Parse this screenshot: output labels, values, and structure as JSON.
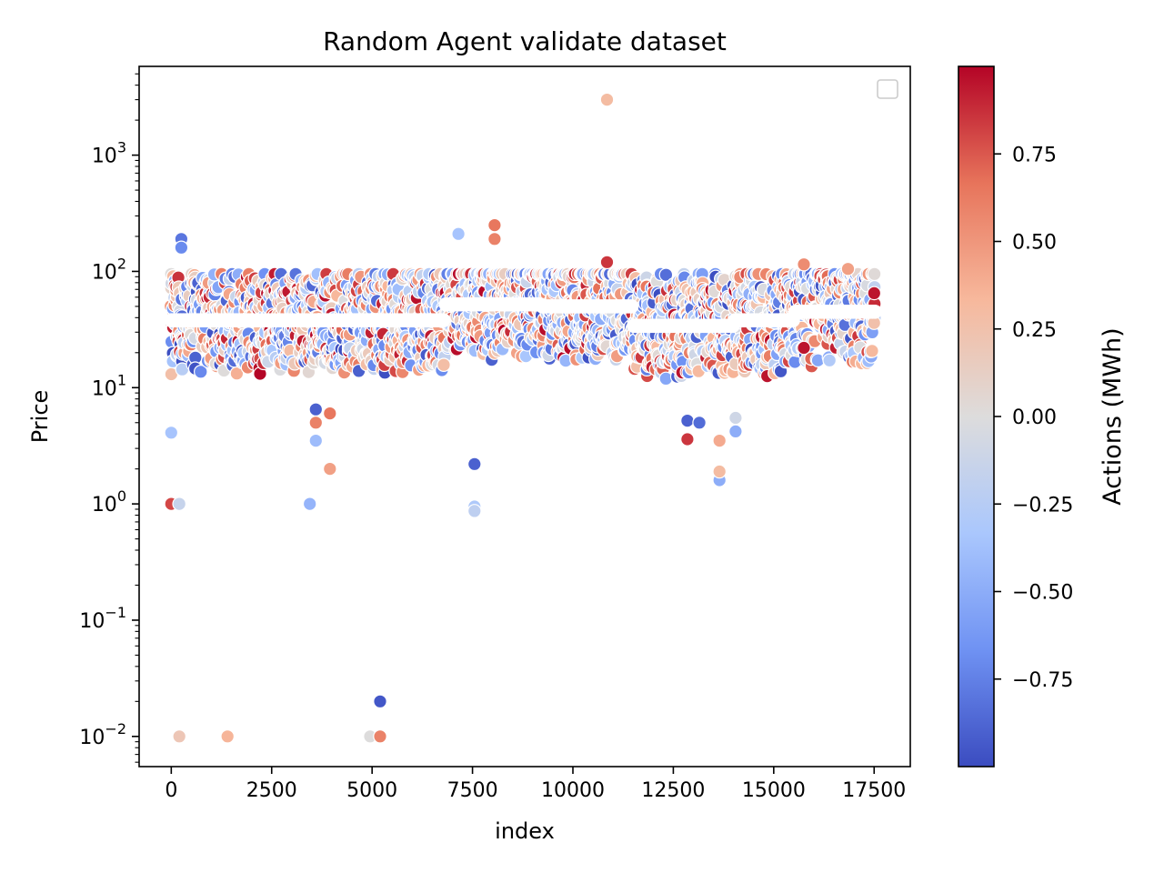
{
  "chart_data": {
    "type": "scatter",
    "title": "Random Agent validate dataset",
    "xlabel": "index",
    "ylabel": "Price",
    "yscale": "log",
    "xlim": [
      -800,
      18400
    ],
    "ylim": [
      0.0055,
      5800
    ],
    "x_ticks": [
      0,
      2500,
      5000,
      7500,
      10000,
      12500,
      15000,
      17500
    ],
    "x_tick_labels": [
      "0",
      "2500",
      "5000",
      "7500",
      "10000",
      "12500",
      "15000",
      "17500"
    ],
    "y_ticks": [
      0.01,
      0.1,
      1,
      10,
      100,
      1000
    ],
    "y_tick_labels": [
      {
        "base": "10",
        "exp": "−2"
      },
      {
        "base": "10",
        "exp": "−1"
      },
      {
        "base": "10",
        "exp": "0"
      },
      {
        "base": "10",
        "exp": "1"
      },
      {
        "base": "10",
        "exp": "2"
      },
      {
        "base": "10",
        "exp": "3"
      }
    ],
    "grid": false,
    "legend": {
      "placement": "upper right",
      "entries": []
    },
    "colorbar": {
      "label": "Actions (MWh)",
      "colormap": "coolwarm",
      "range": [
        -1,
        1
      ],
      "ticks": [
        -0.75,
        -0.5,
        -0.25,
        0,
        0.25,
        0.5,
        0.75
      ],
      "tick_labels": [
        "−0.75",
        "−0.50",
        "−0.25",
        "0.00",
        "0.25",
        "0.50",
        "0.75"
      ]
    },
    "colormap_colors": [
      "#3b4cc0",
      "#6f92f3",
      "#aac7fd",
      "#dddcdc",
      "#f7b89c",
      "#e7745b",
      "#b40426"
    ],
    "notable_points": [
      {
        "x": 0,
        "y": 1.0,
        "action": 0.8
      },
      {
        "x": 0,
        "y": 4.1,
        "action": -0.35
      },
      {
        "x": 200,
        "y": 1.0,
        "action": -0.15
      },
      {
        "x": 200,
        "y": 0.01,
        "action": 0.2
      },
      {
        "x": 1400,
        "y": 0.01,
        "action": 0.35
      },
      {
        "x": 3450,
        "y": 1.0,
        "action": -0.45
      },
      {
        "x": 3600,
        "y": 3.5,
        "action": -0.4
      },
      {
        "x": 3600,
        "y": 5.0,
        "action": 0.6
      },
      {
        "x": 3600,
        "y": 6.5,
        "action": -0.9
      },
      {
        "x": 3950,
        "y": 2.0,
        "action": 0.45
      },
      {
        "x": 3950,
        "y": 6.0,
        "action": 0.65
      },
      {
        "x": 4950,
        "y": 0.01,
        "action": 0.0
      },
      {
        "x": 5200,
        "y": 0.02,
        "action": -0.95
      },
      {
        "x": 5200,
        "y": 0.01,
        "action": 0.6
      },
      {
        "x": 7550,
        "y": 2.2,
        "action": -0.9
      },
      {
        "x": 7550,
        "y": 0.95,
        "action": -0.3
      },
      {
        "x": 7550,
        "y": 0.87,
        "action": -0.2
      },
      {
        "x": 8050,
        "y": 250,
        "action": 0.65
      },
      {
        "x": 8050,
        "y": 190,
        "action": 0.6
      },
      {
        "x": 10850,
        "y": 3000,
        "action": 0.3
      },
      {
        "x": 10850,
        "y": 120,
        "action": 0.85
      },
      {
        "x": 7150,
        "y": 210,
        "action": -0.35
      },
      {
        "x": 250,
        "y": 190,
        "action": -0.8
      },
      {
        "x": 250,
        "y": 160,
        "action": -0.7
      },
      {
        "x": 12850,
        "y": 3.6,
        "action": 0.85
      },
      {
        "x": 12850,
        "y": 5.2,
        "action": -0.9
      },
      {
        "x": 13150,
        "y": 5.0,
        "action": -0.85
      },
      {
        "x": 13650,
        "y": 1.6,
        "action": -0.5
      },
      {
        "x": 13650,
        "y": 1.9,
        "action": 0.3
      },
      {
        "x": 13650,
        "y": 3.5,
        "action": 0.4
      },
      {
        "x": 14050,
        "y": 4.2,
        "action": -0.5
      },
      {
        "x": 14050,
        "y": 5.5,
        "action": -0.1
      },
      {
        "x": 15750,
        "y": 22,
        "action": 0.95
      },
      {
        "x": 15750,
        "y": 115,
        "action": 0.55
      },
      {
        "x": 16850,
        "y": 105,
        "action": 0.45
      },
      {
        "x": 17500,
        "y": 65,
        "action": 0.95
      }
    ]
  }
}
